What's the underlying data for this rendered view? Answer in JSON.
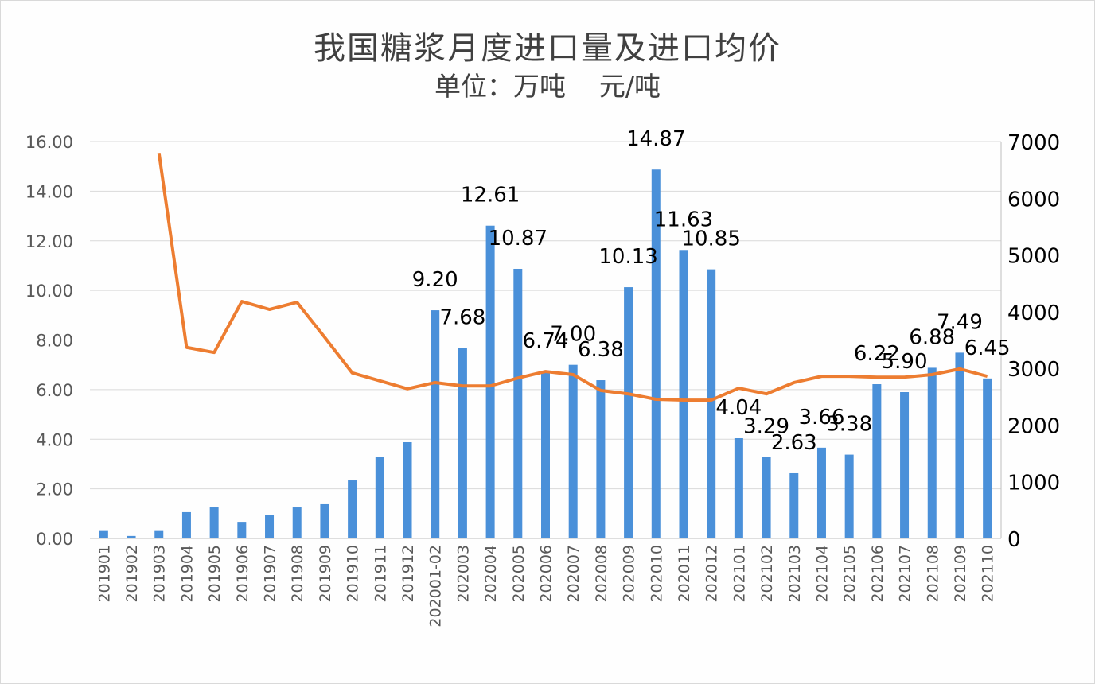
{
  "chart_data": {
    "type": "bar+line",
    "title": "我国糖浆月度进口量及进口均价",
    "subtitle": "单位：万吨    元/吨",
    "categories": [
      "201901",
      "201902",
      "201903",
      "201904",
      "201905",
      "201906",
      "201907",
      "201908",
      "201909",
      "201910",
      "201911",
      "201912",
      "202001-02",
      "202003",
      "202004",
      "202005",
      "202006",
      "202007",
      "202008",
      "202009",
      "202010",
      "202011",
      "202012",
      "202101",
      "202102",
      "202103",
      "202104",
      "202105",
      "202106",
      "202107",
      "202108",
      "202109",
      "202110"
    ],
    "series": [
      {
        "type": "bar",
        "axis": "left",
        "color": "#4a90d9",
        "values": [
          0.3,
          0.1,
          0.3,
          1.06,
          1.25,
          0.67,
          0.93,
          1.25,
          1.38,
          2.34,
          3.3,
          3.88,
          9.2,
          7.68,
          12.61,
          10.87,
          6.74,
          7.0,
          6.38,
          10.13,
          14.87,
          11.63,
          10.85,
          4.04,
          3.29,
          2.63,
          3.66,
          3.38,
          6.22,
          5.9,
          6.88,
          7.49,
          6.45
        ],
        "data_labels": [
          null,
          null,
          null,
          null,
          null,
          null,
          null,
          null,
          null,
          null,
          null,
          null,
          "9.20",
          "7.68",
          "12.61",
          "10.87",
          "6.74",
          "7.00",
          "6.38",
          "10.13",
          "14.87",
          "11.63",
          "10.85",
          "4.04",
          "3.29",
          "2.63",
          "3.66",
          "3.38",
          "6.22",
          "5.90",
          "6.88",
          "7.49",
          "6.45"
        ]
      },
      {
        "type": "line",
        "axis": "right",
        "color": "#ed7d31",
        "values": [
          null,
          null,
          6800,
          3370,
          3280,
          4180,
          4040,
          4165,
          3550,
          2920,
          2780,
          2640,
          2750,
          2690,
          2690,
          2830,
          2945,
          2890,
          2610,
          2550,
          2455,
          2440,
          2440,
          2650,
          2550,
          2750,
          2860,
          2860,
          2845,
          2845,
          2890,
          2990,
          2860
        ]
      }
    ],
    "left_axis": {
      "range": [
        0,
        16
      ],
      "ticks": [
        "0.00",
        "2.00",
        "4.00",
        "6.00",
        "8.00",
        "10.00",
        "12.00",
        "14.00",
        "16.00"
      ]
    },
    "right_axis": {
      "range": [
        0,
        7000
      ],
      "ticks": [
        "0",
        "1000",
        "2000",
        "3000",
        "4000",
        "5000",
        "6000",
        "7000"
      ]
    },
    "grid": true,
    "legend": "none"
  }
}
